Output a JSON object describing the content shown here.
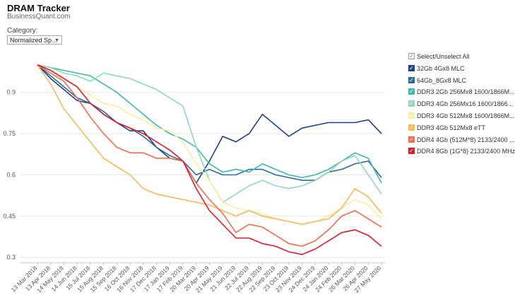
{
  "header": {
    "title": "DRAM Tracker",
    "subtitle": "BusinessQuant.com"
  },
  "filter": {
    "label": "Category:",
    "value": "Normalized Sp..."
  },
  "legend": {
    "select_all": "Select/Unselect All",
    "items": [
      {
        "name": "32Gb 4Gx8 MLC",
        "color": "#1f3f8f"
      },
      {
        "name": "64Gb_8Gx8 MLC",
        "color": "#2a6f97"
      },
      {
        "name": "DDR3 2Gb 256Mx8 1600/1866M...",
        "color": "#3db8b0"
      },
      {
        "name": "DDR3 4Gb 256Mx16 1600/1866...",
        "color": "#8fd9b6"
      },
      {
        "name": "DDR3 4Gb 512Mx8 1600/1866M...",
        "color": "#f6f0a0"
      },
      {
        "name": "DDR3 4Gb 512Mx8 eTT",
        "color": "#f7b955"
      },
      {
        "name": "DDR4 4Gb (512M*8) 2133/2400 ...",
        "color": "#f26b4f"
      },
      {
        "name": "DDR4 8Gb (1G*8) 2133/2400 MHz",
        "color": "#e31a2c"
      }
    ]
  },
  "chart_data": {
    "type": "line",
    "title": "",
    "xlabel": "",
    "ylabel": "",
    "ylim": [
      0.28,
      1.02
    ],
    "yticks": [
      0.3,
      0.45,
      0.6,
      0.75,
      0.9
    ],
    "ytick_labels": [
      "0.3",
      "0.45",
      "0.6",
      "0.75",
      "0.9"
    ],
    "grid": true,
    "legend_position": "right",
    "x": [
      "13 Mar 2018",
      "13 Apr 2018",
      "14 May 2018",
      "14 Jun 2018",
      "15 Jul 2018",
      "15 Aug 2018",
      "15 Sep 2018",
      "16 Oct 2018",
      "16 Nov 2018",
      "17 Dec 2018",
      "17 Jan 2019",
      "17 Feb 2019",
      "20 Mar 2019",
      "20 Apr 2019",
      "21 May 2019",
      "21 Jun 2019",
      "22 Jul 2019",
      "22 Aug 2019",
      "22 Sep 2019",
      "23 Oct 2019",
      "23 Nov 2019",
      "24 Dec 2019",
      "24 Jan 2020",
      "24 Feb 2020",
      "26 Mar 2020",
      "26 Apr 2020",
      "27 May 2020"
    ],
    "series": [
      {
        "name": "32Gb 4Gx8 MLC",
        "values": [
          1.0,
          0.95,
          0.91,
          0.87,
          0.86,
          0.82,
          0.79,
          0.76,
          0.76,
          0.7,
          0.66,
          0.65,
          0.57,
          0.65,
          0.74,
          0.72,
          0.75,
          0.82,
          0.78,
          0.74,
          0.77,
          0.78,
          0.79,
          0.79,
          0.79,
          0.8,
          0.75
        ]
      },
      {
        "name": "64Gb_8Gx8 MLC",
        "values": [
          1.0,
          0.96,
          0.92,
          0.88,
          0.86,
          0.83,
          0.79,
          0.77,
          0.74,
          0.7,
          0.67,
          0.65,
          0.6,
          0.62,
          0.6,
          0.6,
          0.62,
          0.62,
          0.6,
          0.59,
          0.58,
          0.58,
          0.61,
          0.62,
          0.64,
          0.65,
          0.59
        ]
      },
      {
        "name": "DDR3 2Gb 256Mx8 1600/1866M...",
        "values": [
          1.0,
          0.99,
          0.98,
          0.97,
          0.96,
          0.93,
          0.9,
          0.86,
          0.82,
          0.78,
          0.75,
          0.73,
          0.7,
          0.64,
          0.61,
          0.62,
          0.61,
          0.64,
          0.62,
          0.6,
          0.59,
          0.6,
          0.62,
          0.65,
          0.68,
          0.66,
          0.57
        ]
      },
      {
        "name": "DDR3 4Gb 256Mx16 1600/1866...",
        "values": [
          1.0,
          0.99,
          0.97,
          0.96,
          0.94,
          0.97,
          0.96,
          0.95,
          0.93,
          0.91,
          0.88,
          0.85,
          0.7,
          0.58,
          0.5,
          0.53,
          0.56,
          0.58,
          0.56,
          0.55,
          0.56,
          0.58,
          0.61,
          0.65,
          0.67,
          0.6,
          0.53
        ]
      },
      {
        "name": "DDR3 4Gb 512Mx8 1600/1866M...",
        "values": [
          1.0,
          0.97,
          0.95,
          0.92,
          0.89,
          0.86,
          0.85,
          0.82,
          0.8,
          0.77,
          0.76,
          0.72,
          0.64,
          0.58,
          0.5,
          0.48,
          0.47,
          0.46,
          0.44,
          0.43,
          0.42,
          0.43,
          0.45,
          0.48,
          0.51,
          0.49,
          0.44
        ]
      },
      {
        "name": "DDR3 4Gb 512Mx8 eTT",
        "values": [
          1.0,
          0.93,
          0.84,
          0.78,
          0.72,
          0.66,
          0.63,
          0.6,
          0.55,
          0.53,
          0.52,
          0.51,
          0.5,
          0.49,
          0.47,
          0.45,
          0.47,
          0.45,
          0.44,
          0.43,
          0.42,
          0.43,
          0.44,
          0.48,
          0.55,
          0.52,
          0.46
        ]
      },
      {
        "name": "DDR4 4Gb (512M*8) 2133/2400 ...",
        "values": [
          1.0,
          0.97,
          0.94,
          0.88,
          0.81,
          0.75,
          0.7,
          0.68,
          0.68,
          0.66,
          0.66,
          0.65,
          0.57,
          0.51,
          0.46,
          0.39,
          0.42,
          0.41,
          0.38,
          0.35,
          0.34,
          0.36,
          0.4,
          0.45,
          0.47,
          0.44,
          0.41
        ]
      },
      {
        "name": "DDR4 8Gb (1G*8) 2133/2400 MHz",
        "values": [
          1.0,
          0.98,
          0.95,
          0.92,
          0.86,
          0.82,
          0.79,
          0.77,
          0.75,
          0.72,
          0.69,
          0.65,
          0.55,
          0.47,
          0.42,
          0.37,
          0.37,
          0.35,
          0.34,
          0.32,
          0.31,
          0.33,
          0.36,
          0.39,
          0.4,
          0.38,
          0.34
        ]
      }
    ]
  }
}
